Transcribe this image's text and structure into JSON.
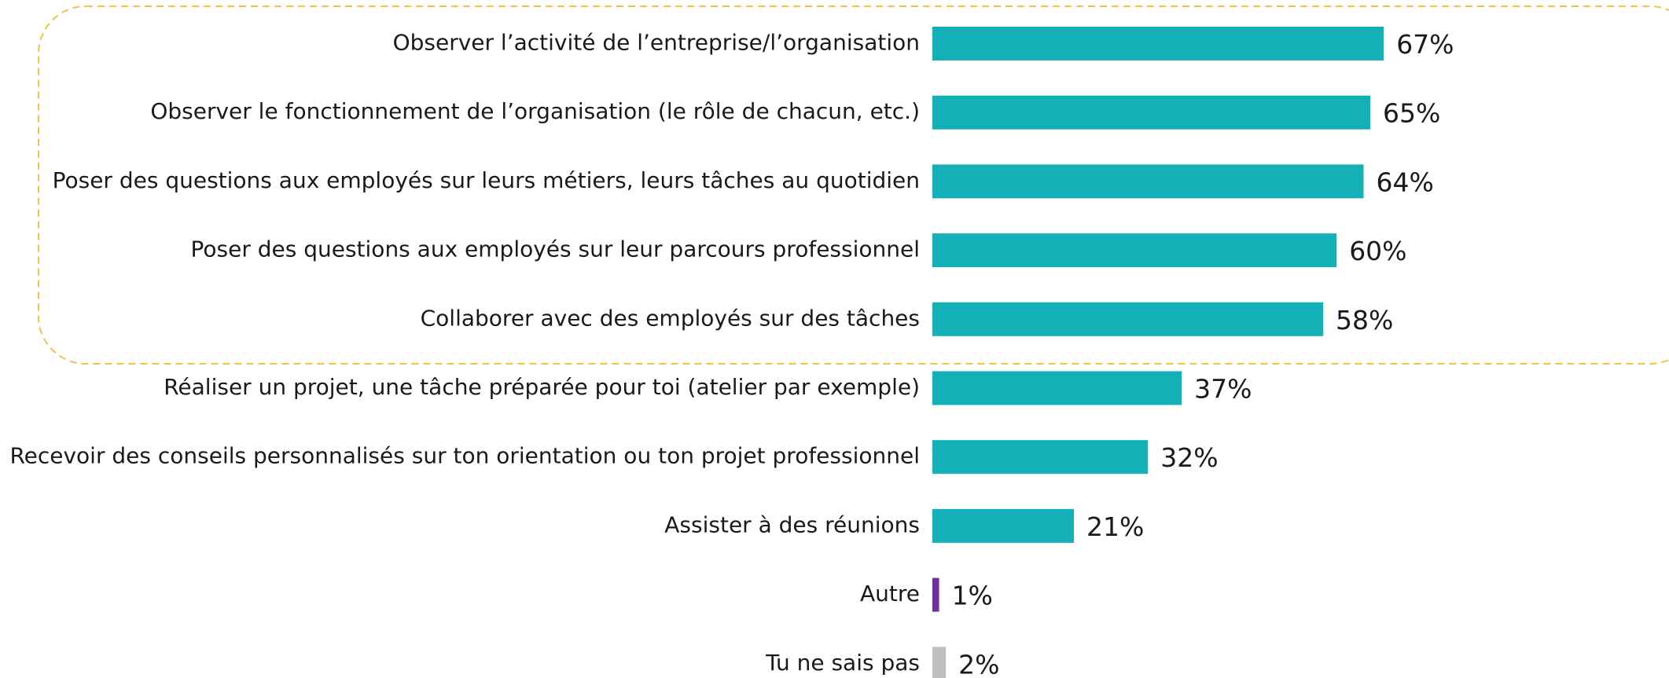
{
  "chart_data": {
    "type": "bar",
    "orientation": "horizontal",
    "categories": [
      "Observer l’activité de l’entreprise/l’organisation",
      "Observer le fonctionnement de l’organisation (le rôle de chacun, etc.)",
      "Poser des questions aux employés sur leurs métiers, leurs tâches au quotidien",
      "Poser des questions aux employés sur leur parcours professionnel",
      "Collaborer avec des employés sur des tâches",
      "Réaliser un projet, une tâche préparée pour toi (atelier par exemple)",
      "Recevoir des conseils personnalisés sur ton orientation ou ton projet professionnel",
      "Assister à des réunions",
      "Autre",
      "Tu ne sais pas"
    ],
    "values": [
      67,
      65,
      64,
      60,
      58,
      37,
      32,
      21,
      1,
      2
    ],
    "value_labels": [
      "67%",
      "65%",
      "64%",
      "60%",
      "58%",
      "37%",
      "32%",
      "21%",
      "1%",
      "2%"
    ],
    "colors": [
      "#13b0b8",
      "#13b0b8",
      "#13b0b8",
      "#13b0b8",
      "#13b0b8",
      "#13b0b8",
      "#13b0b8",
      "#13b0b8",
      "#7030a0",
      "#bfbfbf"
    ]
  }
}
